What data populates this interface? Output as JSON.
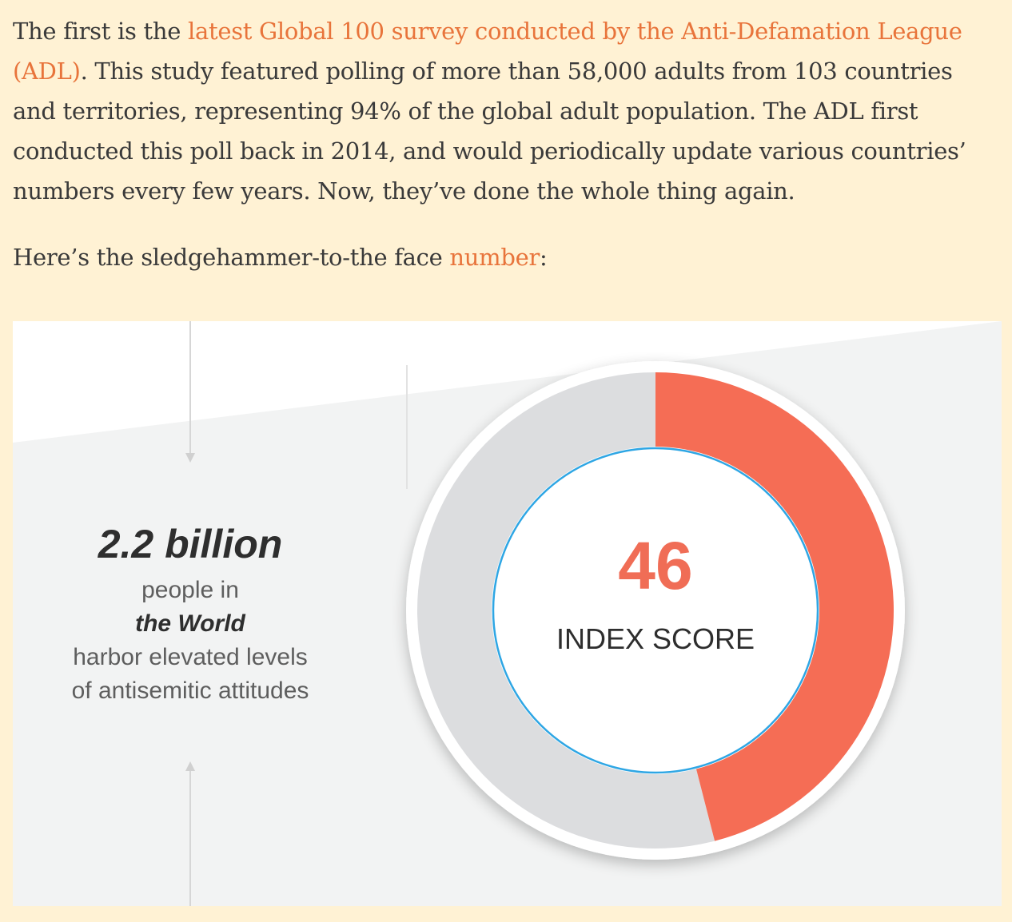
{
  "article": {
    "para1": {
      "lead": "The first is the ",
      "link": "latest Global 100 survey conducted by the Anti-Defamation League (ADL)",
      "rest": ". This study featured polling of more than 58,000 adults from 103 countries and territories, representing 94% of the global adult population. The ADL first conducted this poll back in 2014, and would periodically update various countries’ numbers every few years. Now, they’ve done the whole thing again."
    },
    "para2": {
      "lead": "Here’s the sledgehammer-to-the face ",
      "link": "number",
      "rest": ":"
    }
  },
  "infographic": {
    "stat": {
      "value": "2.2 billion",
      "line1": "people in",
      "line2": "the World",
      "line3": "harbor elevated levels",
      "line4": "of antisemitic attitudes"
    },
    "gauge": {
      "score": "46",
      "label": "INDEX SCORE",
      "fraction": 0.46,
      "colors": {
        "filled": "#f56d55",
        "track": "#dcdddf",
        "ring": "#2ea6e4"
      }
    }
  }
}
